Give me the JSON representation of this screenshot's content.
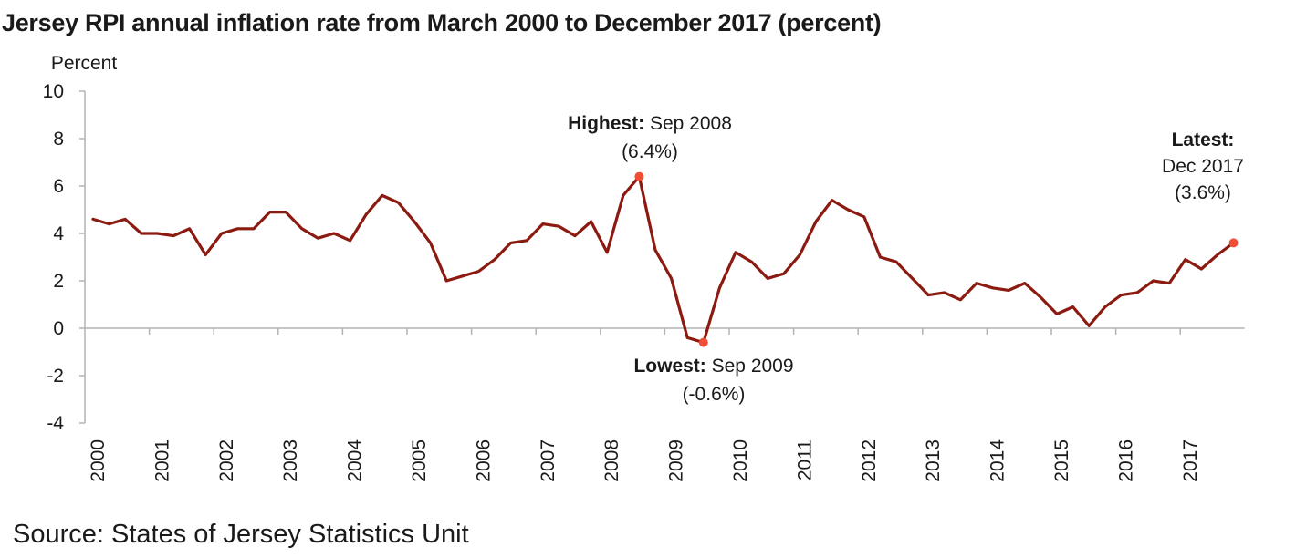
{
  "chart_data": {
    "type": "line",
    "title": "Jersey RPI annual inflation rate from March 2000 to December 2017 (percent)",
    "ylabel": "Percent",
    "xlabel": "",
    "ylim": [
      -4,
      10
    ],
    "yticks": [
      10,
      8,
      6,
      4,
      2,
      0,
      -2,
      -4
    ],
    "year_labels": [
      "2000",
      "2001",
      "2002",
      "2003",
      "2004",
      "2005",
      "2006",
      "2007",
      "2008",
      "2009",
      "2010",
      "2011",
      "2012",
      "2013",
      "2014",
      "2015",
      "2016",
      "2017"
    ],
    "grid": false,
    "line_color": "#8b1a10",
    "marker_color": "#f04e37",
    "series": [
      {
        "x": [
          "Mar 2000",
          "Jun 2000",
          "Sep 2000",
          "Dec 2000",
          "Mar 2001",
          "Jun 2001",
          "Sep 2001",
          "Dec 2001",
          "Mar 2002",
          "Jun 2002",
          "Sep 2002",
          "Dec 2002",
          "Mar 2003",
          "Jun 2003",
          "Sep 2003",
          "Dec 2003",
          "Mar 2004",
          "Jun 2004",
          "Sep 2004",
          "Dec 2004",
          "Mar 2005",
          "Jun 2005",
          "Sep 2005",
          "Dec 2005",
          "Mar 2006",
          "Jun 2006",
          "Sep 2006",
          "Dec 2006",
          "Mar 2007",
          "Jun 2007",
          "Sep 2007",
          "Dec 2007",
          "Mar 2008",
          "Jun 2008",
          "Sep 2008",
          "Dec 2008",
          "Mar 2009",
          "Jun 2009",
          "Sep 2009",
          "Dec 2009",
          "Mar 2010",
          "Jun 2010",
          "Sep 2010",
          "Dec 2010",
          "Mar 2011",
          "Jun 2011",
          "Sep 2011",
          "Dec 2011",
          "Mar 2012",
          "Jun 2012",
          "Sep 2012",
          "Dec 2012",
          "Mar 2013",
          "Jun 2013",
          "Sep 2013",
          "Dec 2013",
          "Mar 2014",
          "Jun 2014",
          "Sep 2014",
          "Dec 2014",
          "Mar 2015",
          "Jun 2015",
          "Sep 2015",
          "Dec 2015",
          "Mar 2016",
          "Jun 2016",
          "Sep 2016",
          "Dec 2016",
          "Mar 2017",
          "Jun 2017",
          "Sep 2017",
          "Dec 2017"
        ],
        "values": [
          4.6,
          4.4,
          4.6,
          4.0,
          4.0,
          3.9,
          4.2,
          3.1,
          4.0,
          4.2,
          4.2,
          4.9,
          4.9,
          4.2,
          3.8,
          4.0,
          3.7,
          4.8,
          5.6,
          5.3,
          4.5,
          3.6,
          2.0,
          2.2,
          2.4,
          2.9,
          3.6,
          3.7,
          4.4,
          4.3,
          3.9,
          4.5,
          3.2,
          5.6,
          6.4,
          3.3,
          2.1,
          -0.4,
          -0.6,
          1.7,
          3.2,
          2.8,
          2.1,
          2.3,
          3.1,
          4.5,
          5.4,
          5.0,
          4.7,
          3.0,
          2.8,
          2.1,
          1.4,
          1.5,
          1.2,
          1.9,
          1.7,
          1.6,
          1.9,
          1.3,
          0.6,
          0.9,
          0.1,
          0.9,
          1.4,
          1.5,
          2.0,
          1.9,
          2.9,
          2.5,
          3.1,
          3.6
        ]
      }
    ],
    "annotations": [
      {
        "id": "highest",
        "label": "Highest:",
        "lines": [
          "Sep 2008",
          "(6.4%)"
        ],
        "index": 34,
        "value": 6.4
      },
      {
        "id": "lowest",
        "label": "Lowest:",
        "lines": [
          "Sep 2009",
          "(-0.6%)"
        ],
        "index": 38,
        "value": -0.6
      },
      {
        "id": "latest",
        "label": "Latest:",
        "lines": [
          "Dec 2017",
          "(3.6%)"
        ],
        "index": 71,
        "value": 3.6
      }
    ]
  },
  "source": "Source: States of Jersey Statistics Unit"
}
